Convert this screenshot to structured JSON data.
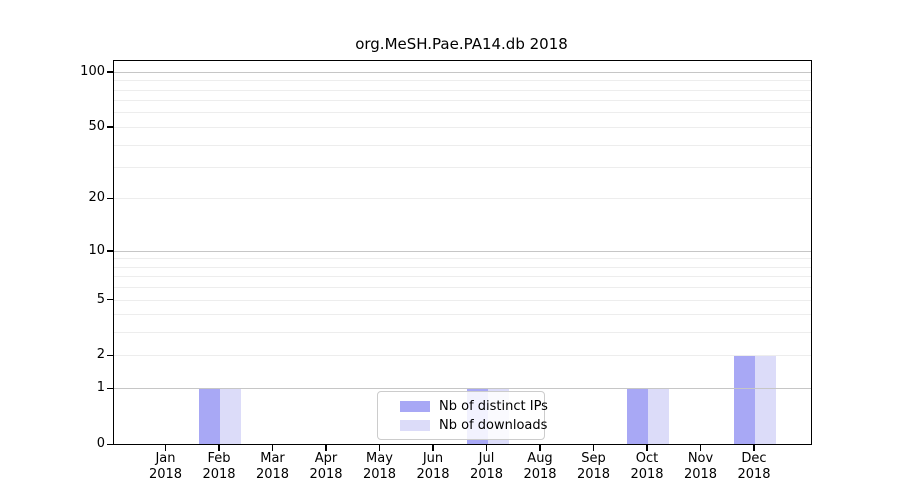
{
  "chart_data": {
    "type": "bar",
    "title": "org.MeSH.Pae.PA14.db 2018",
    "categories": [
      "Jan",
      "Feb",
      "Mar",
      "Apr",
      "May",
      "Jun",
      "Jul",
      "Aug",
      "Sep",
      "Oct",
      "Nov",
      "Dec"
    ],
    "x_year_label": "2018",
    "series": [
      {
        "name": "Nb of distinct IPs",
        "color": "#a8a8f5",
        "values": [
          0,
          1,
          0,
          0,
          0,
          0,
          1,
          0,
          0,
          1,
          0,
          2
        ]
      },
      {
        "name": "Nb of downloads",
        "color": "#dcdcf9",
        "values": [
          0,
          1,
          0,
          0,
          0,
          0,
          1,
          0,
          0,
          1,
          0,
          2
        ]
      }
    ],
    "xlabel": "",
    "ylabel": "",
    "y_scale": "log1p",
    "ylim": [
      0,
      114.5
    ],
    "y_ticks": [
      0,
      1,
      2,
      5,
      10,
      20,
      50,
      100
    ],
    "grid": {
      "on": true,
      "major_lines": [
        1,
        10,
        100
      ],
      "minor_lines": [
        2,
        3,
        4,
        5,
        6,
        7,
        8,
        9,
        20,
        30,
        40,
        50,
        60,
        70,
        80,
        90
      ]
    },
    "legend": {
      "position": "lower-center",
      "entries": [
        "Nb of distinct IPs",
        "Nb of downloads"
      ]
    },
    "colors": {
      "bar_distinct_ips": "#a8a8f5",
      "bar_downloads": "#dcdcf9",
      "grid_major": "#c6c6c6",
      "grid_minor": "#ededed",
      "axis": "#000000",
      "text": "#000000"
    }
  }
}
